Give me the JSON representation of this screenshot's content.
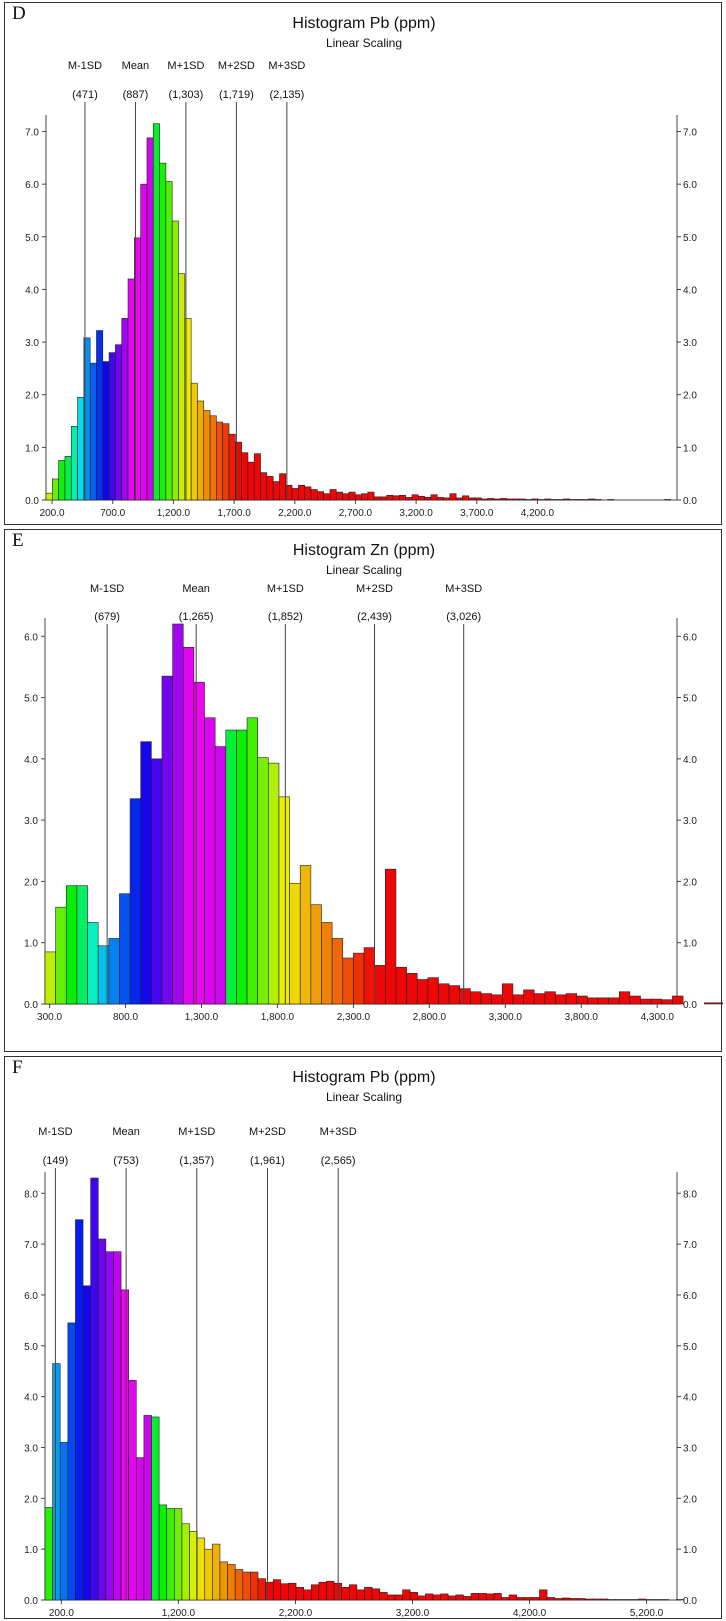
{
  "chart_data": [
    {
      "panel": "D",
      "type": "bar",
      "title": "Histogram Pb (ppm)",
      "subtitle": "Linear Scaling",
      "xlim": [
        150,
        5350
      ],
      "ylim": [
        0,
        7.2
      ],
      "xticks": [
        "200.0",
        "700.0",
        "1,200.0",
        "1,700.0",
        "2,200.0",
        "2,700.0",
        "3,200.0",
        "3,700.0",
        "4,200.0"
      ],
      "yticks": [
        "0.0",
        "1.0",
        "2.0",
        "3.0",
        "4.0",
        "5.0",
        "6.0",
        "7.0"
      ],
      "bin_start": 150,
      "bin_width": 52,
      "values": [
        0.13,
        0.4,
        0.75,
        0.83,
        1.4,
        1.95,
        3.08,
        2.6,
        3.22,
        2.63,
        2.8,
        2.95,
        3.45,
        4.2,
        4.98,
        6.0,
        6.88,
        7.15,
        6.4,
        6.05,
        5.3,
        4.3,
        3.45,
        2.22,
        1.88,
        1.7,
        1.6,
        1.48,
        1.45,
        1.25,
        1.1,
        0.9,
        0.72,
        0.88,
        0.52,
        0.45,
        0.35,
        0.5,
        0.28,
        0.22,
        0.28,
        0.25,
        0.2,
        0.16,
        0.12,
        0.2,
        0.15,
        0.12,
        0.15,
        0.1,
        0.12,
        0.15,
        0.06,
        0.06,
        0.09,
        0.08,
        0.09,
        0.05,
        0.1,
        0.07,
        0.05,
        0.1,
        0.05,
        0.04,
        0.12,
        0.04,
        0.08,
        0.04,
        0.04,
        0.02,
        0.03,
        0.02,
        0.03,
        0.02,
        0.02,
        0.02,
        0.01,
        0.02,
        0.01,
        0.02,
        0.01,
        0.01,
        0.02,
        0.01,
        0.01,
        0.01,
        0.02,
        0.01,
        0,
        0.01,
        0,
        0,
        0,
        0,
        0,
        0,
        0,
        0,
        0.01
      ],
      "stats": [
        {
          "label": "M-1SD",
          "value": 471,
          "display": "(471)"
        },
        {
          "label": "Mean",
          "value": 887,
          "display": "(887)"
        },
        {
          "label": "M+1SD",
          "value": 1303,
          "display": "(1,303)"
        },
        {
          "label": "M+2SD",
          "value": 1719,
          "display": "(1,719)"
        },
        {
          "label": "M+3SD",
          "value": 2135,
          "display": "(2,135)"
        }
      ]
    },
    {
      "panel": "E",
      "type": "bar",
      "title": "Histogram Zn (ppm)",
      "subtitle": "Linear Scaling",
      "xlim": [
        270,
        4430
      ],
      "ylim": [
        0,
        6.2
      ],
      "xticks": [
        "300.0",
        "800.0",
        "1,300.0",
        "1,800.0",
        "2,300.0",
        "2,800.0",
        "3,300.0",
        "3,800.0",
        "4,300.0"
      ],
      "yticks": [
        "0.0",
        "1.0",
        "2.0",
        "3.0",
        "4.0",
        "5.0",
        "6.0"
      ],
      "bin_start": 270,
      "bin_width": 70,
      "values": [
        0.85,
        1.58,
        1.93,
        1.93,
        1.33,
        0.95,
        1.07,
        1.8,
        3.35,
        4.28,
        4.0,
        5.35,
        6.2,
        5.82,
        5.25,
        4.67,
        4.2,
        4.47,
        4.47,
        4.67,
        4.02,
        3.93,
        3.38,
        1.97,
        2.26,
        1.62,
        1.33,
        1.07,
        0.75,
        0.83,
        0.92,
        0.63,
        2.2,
        0.6,
        0.5,
        0.4,
        0.43,
        0.33,
        0.3,
        0.25,
        0.2,
        0.17,
        0.15,
        0.33,
        0.15,
        0.23,
        0.17,
        0.2,
        0.15,
        0.17,
        0.13,
        0.1,
        0.1,
        0.1,
        0.2,
        0.13,
        0.08,
        0.08,
        0.07,
        0.13,
        0,
        0,
        0.02,
        0.02,
        0.02
      ],
      "stats": [
        {
          "label": "M-1SD",
          "value": 679,
          "display": "(679)"
        },
        {
          "label": "Mean",
          "value": 1265,
          "display": "(1,265)"
        },
        {
          "label": "M+1SD",
          "value": 1852,
          "display": "(1,852)"
        },
        {
          "label": "M+2SD",
          "value": 2439,
          "display": "(2,439)"
        },
        {
          "label": "M+3SD",
          "value": 3026,
          "display": "(3,026)"
        }
      ]
    },
    {
      "panel": "F",
      "type": "bar",
      "title": "Histogram Pb (ppm)",
      "subtitle": "Linear Scaling",
      "xlim": [
        60,
        5460
      ],
      "ylim": [
        0,
        8.3
      ],
      "xticks": [
        "200.0",
        "1,200.0",
        "2,200.0",
        "3,200.0",
        "4,200.0",
        "5,200.0"
      ],
      "yticks": [
        "0.0",
        "1.0",
        "2.0",
        "3.0",
        "4.0",
        "5.0",
        "6.0",
        "7.0",
        "8.0"
      ],
      "bin_start": 60,
      "bin_width": 65,
      "values": [
        1.82,
        4.65,
        3.1,
        5.45,
        7.48,
        6.18,
        8.3,
        7.1,
        6.85,
        6.85,
        6.1,
        4.32,
        2.8,
        3.63,
        3.6,
        1.87,
        1.8,
        1.8,
        1.5,
        1.35,
        1.22,
        1.0,
        1.1,
        0.75,
        0.7,
        0.6,
        0.55,
        0.55,
        0.42,
        0.35,
        0.4,
        0.32,
        0.33,
        0.25,
        0.2,
        0.3,
        0.35,
        0.37,
        0.33,
        0.25,
        0.3,
        0.2,
        0.25,
        0.22,
        0.15,
        0.1,
        0.1,
        0.2,
        0.15,
        0.08,
        0.12,
        0.1,
        0.12,
        0.08,
        0.1,
        0.07,
        0.13,
        0.13,
        0.12,
        0.13,
        0.05,
        0.1,
        0.05,
        0.05,
        0.05,
        0.2,
        0.05,
        0.03,
        0.04,
        0.03,
        0.03,
        0.02,
        0.02,
        0.02,
        0.01,
        0.01,
        0.01,
        0.01,
        0.02,
        0.01,
        0.01,
        0.01,
        0,
        0.01
      ],
      "stats": [
        {
          "label": "M-1SD",
          "value": 149,
          "display": "(149)"
        },
        {
          "label": "Mean",
          "value": 753,
          "display": "(753)"
        },
        {
          "label": "M+1SD",
          "value": 1357,
          "display": "(1,357)"
        },
        {
          "label": "M+2SD",
          "value": 1961,
          "display": "(1,961)"
        },
        {
          "label": "M+3SD",
          "value": 2565,
          "display": "(2,565)"
        }
      ]
    }
  ]
}
